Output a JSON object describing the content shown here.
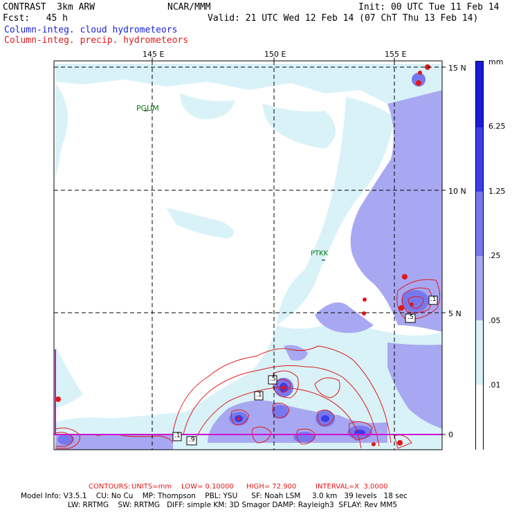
{
  "header": {
    "model": "CONTRAST  3km ARW",
    "forecast": "Fcst:   45 h",
    "center": "NCAR/MMM",
    "init": "Init: 00 UTC Tue 11 Feb 14",
    "valid": "Valid: 21 UTC Wed 12 Feb 14 (07 ChT Thu 13 Feb 14)",
    "field_blue": "Column-integ. cloud hydrometeors",
    "field_red": "Column-integ. precip. hydrometeors"
  },
  "map": {
    "lon_labels": [
      "145 E",
      "150 E",
      "155 E"
    ],
    "lat_labels": [
      "15 N",
      "10 N",
      "5 N",
      "0"
    ],
    "stations": [
      "PGUM",
      "PTKK"
    ]
  },
  "colorbar": {
    "unit": "mm",
    "labels": [
      "6.25",
      "1.25",
      ".25",
      ".05",
      ".01"
    ],
    "colors": [
      "#1a1ad8",
      "#3c3ce8",
      "#7878ee",
      "#a8a8f2",
      "#d8f2f8",
      "#ffffff"
    ]
  },
  "contours": {
    "prefix": "CONTOURS:",
    "units": "UNITS=mm",
    "low": "LOW= 0.10000",
    "high": "HIGH= 72.900",
    "interval": "INTERVAL=X  3.0000"
  },
  "contour_labels": [
    ".5",
    ".1",
    ".1",
    ".9",
    ".1",
    ".5"
  ],
  "model_info": {
    "line1": "Model Info: V3.5.1    CU: No Cu    MP: Thompson    PBL: YSU      SF: Noah LSM     3.0 km   39 levels   18 sec",
    "line2": "LW: RRTMG    SW: RRTMG   DIFF: simple KM: 3D Smagor DAMP: Rayleigh3  SFLAY: Rev MM5"
  }
}
